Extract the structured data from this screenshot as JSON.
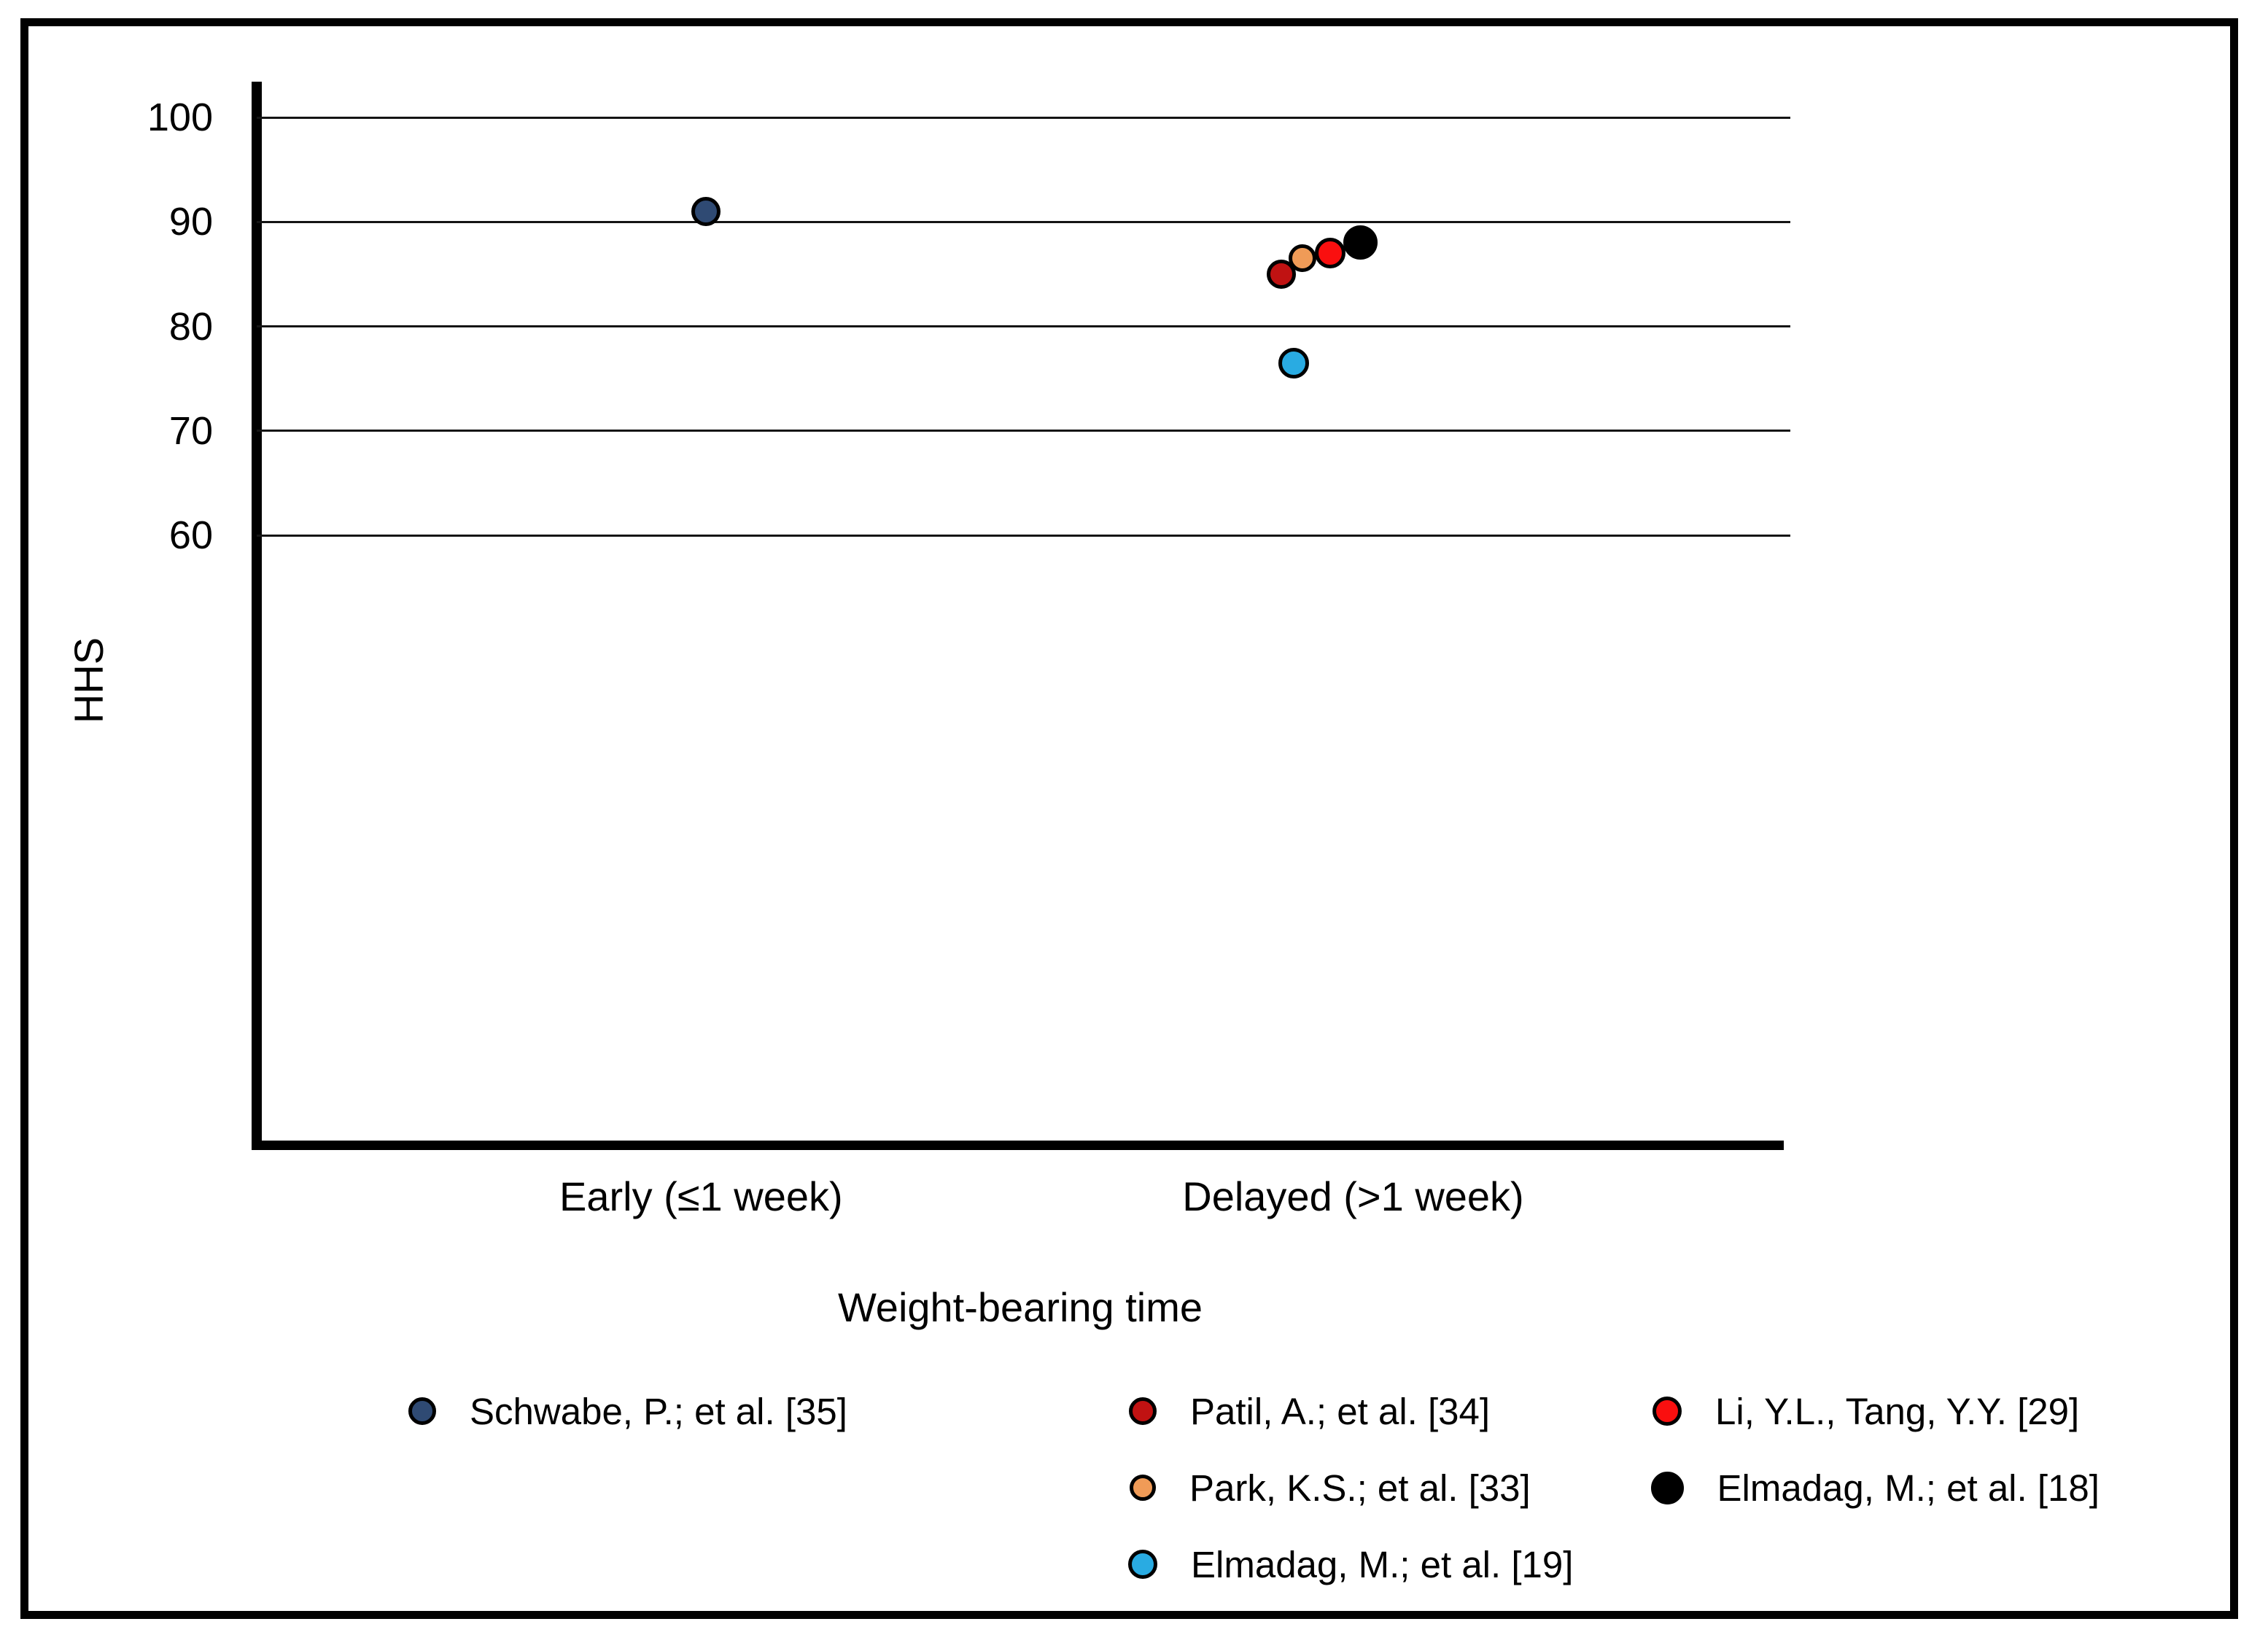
{
  "chart_data": {
    "type": "scatter",
    "title": "",
    "xlabel": "Weight-bearing time",
    "ylabel": "HHS",
    "x_categories": [
      {
        "label": "Early (≤1 week)",
        "x_frac": 0.291
      },
      {
        "label": "Delayed (>1 week)",
        "x_frac": 0.718
      }
    ],
    "y_ticks": [
      100,
      90,
      80,
      70,
      60
    ],
    "ylim": [
      0,
      103
    ],
    "grid": "horizontal gridlines only at 60,70,80,90,100",
    "legend_position": "bottom",
    "points": [
      {
        "study": "Schwabe, P.; et al. [35]",
        "category": "Early (≤1 week)",
        "hhs": 91,
        "color": "#2F4A73",
        "x_frac": 0.294,
        "size": 40
      },
      {
        "study": "Patil, A.; et al. [34]",
        "category": "Delayed (>1 week)",
        "hhs": 85,
        "color": "#C01212",
        "x_frac": 0.671,
        "size": 40
      },
      {
        "study": "Park, K.S.; et al. [33]",
        "category": "Delayed (>1 week)",
        "hhs": 86.5,
        "color": "#F09B57",
        "x_frac": 0.685,
        "size": 38
      },
      {
        "study": "Li, Y.L., Tang, Y.Y. [29]",
        "category": "Delayed (>1 week)",
        "hhs": 87,
        "color": "#FA0F0F",
        "x_frac": 0.703,
        "size": 42
      },
      {
        "study": "Elmadag, M.; et al. [18]",
        "category": "Delayed (>1 week)",
        "hhs": 88,
        "color": "#000000",
        "x_frac": 0.723,
        "size": 47
      },
      {
        "study": "Elmadag, M.; et al. [19]",
        "category": "Delayed (>1 week)",
        "hhs": 76.5,
        "color": "#29ABE2",
        "x_frac": 0.679,
        "size": 42
      }
    ],
    "legend_columns": [
      [
        "Schwabe, P.; et al. [35]"
      ],
      [
        "Patil, A.; et al. [34]",
        "Park, K.S.; et al. [33]",
        "Elmadag, M.; et al. [19]"
      ],
      [
        "Li, Y.L., Tang, Y.Y. [29]",
        "Elmadag, M.; et al. [18]"
      ]
    ]
  }
}
